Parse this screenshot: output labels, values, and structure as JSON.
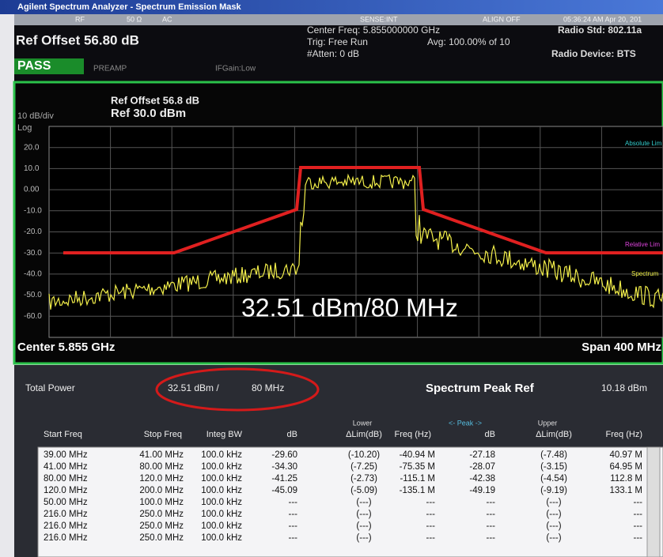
{
  "title_bar": "Agilent Spectrum Analyzer - Spectrum Emission Mask",
  "status": [
    "RF",
    "50 Ω",
    "AC",
    "SENSE:INT",
    "ALIGN OFF",
    "05:36:24 AM Apr 20, 201"
  ],
  "header": {
    "ref_offset": "Ref Offset 56.80 dB",
    "result": "PASS",
    "preamp": "PREAMP",
    "ifgain": "IFGain:Low",
    "center_freq": "Center Freq: 5.855000000 GHz",
    "trig": "Trig: Free Run",
    "avg": "Avg: 100.00% of 10",
    "atten": "#Atten: 0 dB",
    "radio_std": "Radio Std: 802.11a",
    "radio_device": "Radio Device: BTS"
  },
  "graph": {
    "ref_offset": "Ref Offset 56.8 dB",
    "ref": "Ref 30.0 dBm",
    "scale": "10 dB/div",
    "log": "Log",
    "y_labels": [
      "20.0",
      "10.0",
      "0.00",
      "-10.0",
      "-20.0",
      "-30.0",
      "-40.0",
      "-50.0",
      "-60.0"
    ],
    "absolute_lim": "Absolute Lim",
    "relative_lim": "Relative Lim",
    "spectrum": "Spectrum",
    "overlay": "32.51 dBm/80 MHz",
    "center": "Center 5.855 GHz",
    "span": "Span 400 MHz"
  },
  "summary": {
    "total_power": "Total Power",
    "power": "32.51 dBm /",
    "bandwidth": "80 MHz",
    "peak_ref_label": "Spectrum Peak Ref",
    "peak_ref": "10.18 dBm"
  },
  "table": {
    "groups": [
      "Lower",
      "<- Peak ->",
      "Upper"
    ],
    "columns": [
      "Start Freq",
      "Stop Freq",
      "Integ BW",
      "dB",
      "ΔLim(dB)",
      "Freq (Hz)",
      "dB",
      "ΔLim(dB)",
      "Freq (Hz)"
    ],
    "rows": [
      [
        "39.00 MHz",
        "41.00 MHz",
        "100.0 kHz",
        "-29.60",
        "(-10.20)",
        "-40.94 M",
        "-27.18",
        "(-7.48)",
        "40.97 M"
      ],
      [
        "41.00 MHz",
        "80.00 MHz",
        "100.0 kHz",
        "-34.30",
        "(-7.25)",
        "-75.35 M",
        "-28.07",
        "(-3.15)",
        "64.95 M"
      ],
      [
        "80.00 MHz",
        "120.0 MHz",
        "100.0 kHz",
        "-41.25",
        "(-2.73)",
        "-115.1 M",
        "-42.38",
        "(-4.54)",
        "112.8 M"
      ],
      [
        "120.0 MHz",
        "200.0 MHz",
        "100.0 kHz",
        "-45.09",
        "(-5.09)",
        "-135.1 M",
        "-49.19",
        "(-9.19)",
        "133.1 M"
      ],
      [
        "50.00 MHz",
        "100.0 MHz",
        "100.0 kHz",
        "---",
        "(---)",
        "---",
        "---",
        "(---)",
        "---"
      ],
      [
        "216.0 MHz",
        "250.0 MHz",
        "100.0 kHz",
        "---",
        "(---)",
        "---",
        "---",
        "(---)",
        "---"
      ],
      [
        "216.0 MHz",
        "250.0 MHz",
        "100.0 kHz",
        "---",
        "(---)",
        "---",
        "---",
        "(---)",
        "---"
      ],
      [
        "216.0 MHz",
        "250.0 MHz",
        "100.0 kHz",
        "---",
        "(---)",
        "---",
        "---",
        "(---)",
        "---"
      ]
    ]
  }
}
